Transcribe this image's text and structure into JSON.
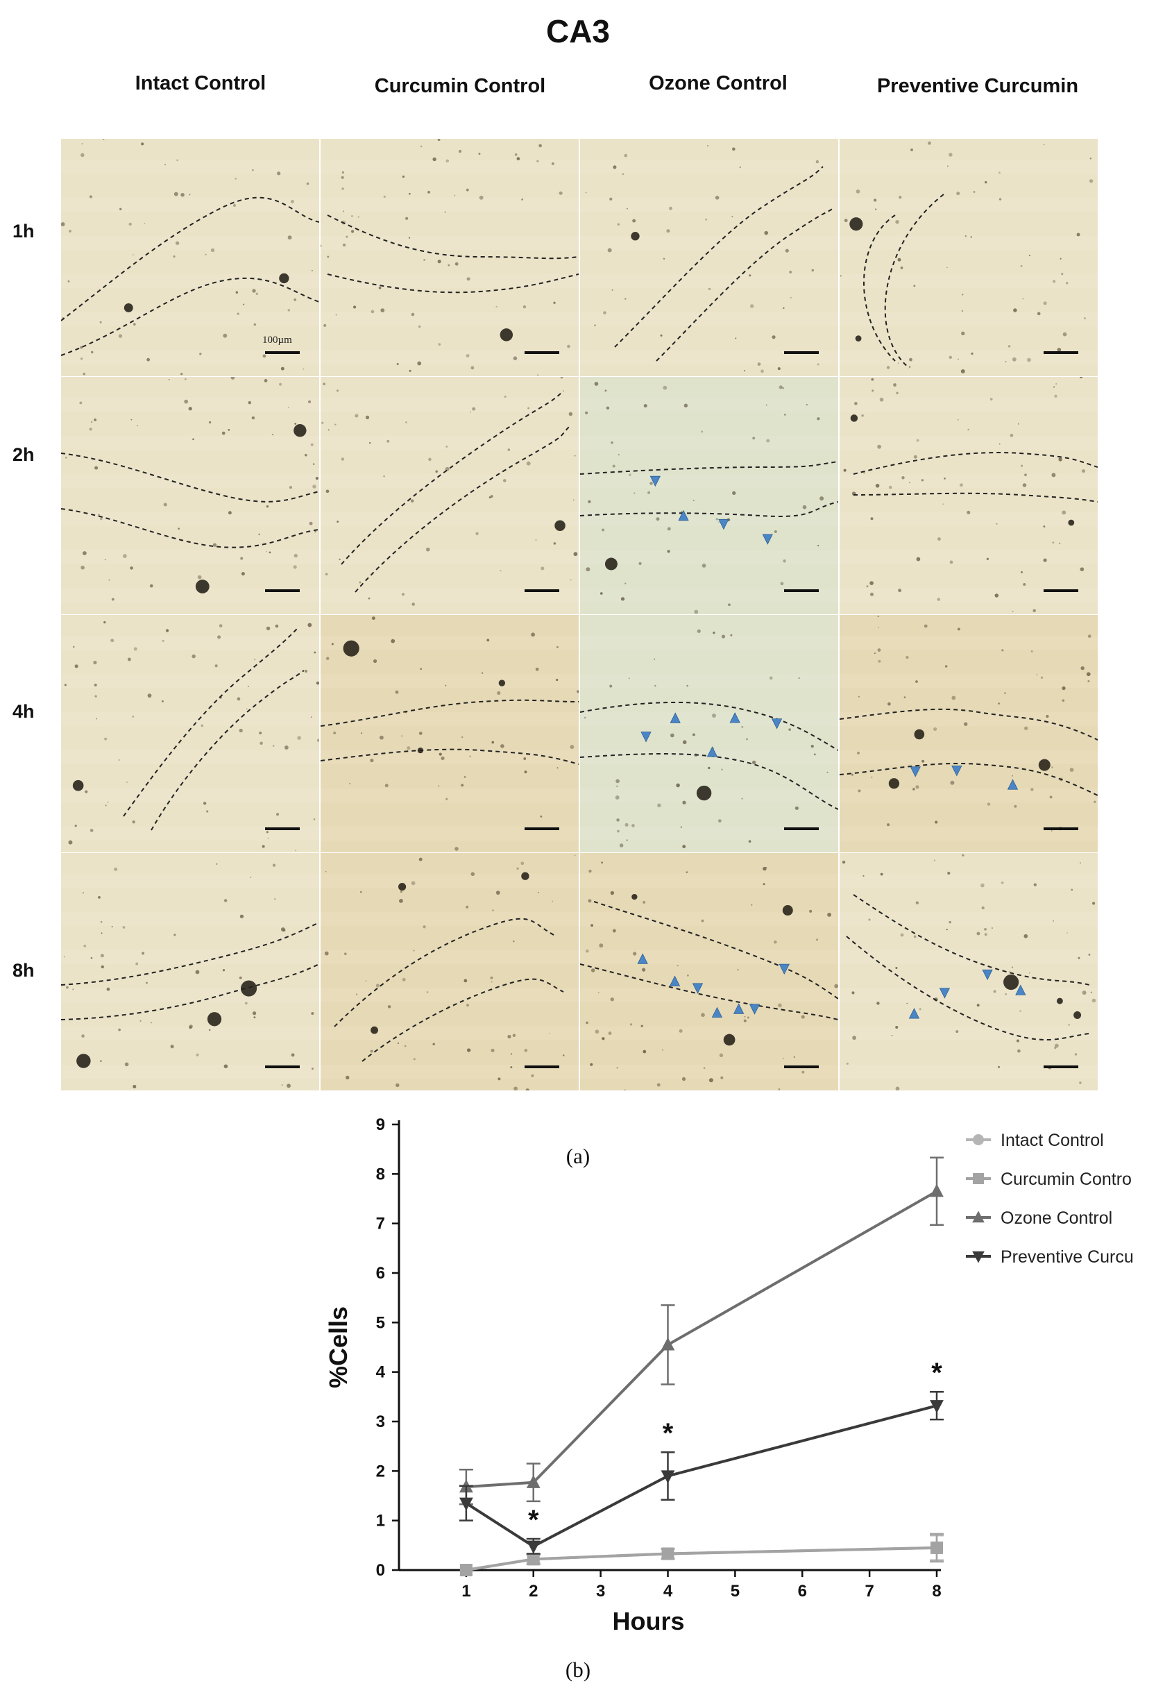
{
  "figure": {
    "title": "CA3",
    "columns": [
      "Intact Control",
      "Curcumin Control",
      "Ozone Control",
      "Preventive Curcumin"
    ],
    "rows": [
      "1h",
      "2h",
      "4h",
      "8h"
    ],
    "scale_bar_label": "100µm",
    "caption_a": "(a)",
    "caption_b": "(b)",
    "colors": {
      "tissue_light": "#ebe3c8",
      "tissue_green": "#dfe3cc",
      "tissue_brown": "#e6d9b6",
      "arrowhead": "#4a86c5",
      "boundary_line": "#222222"
    },
    "arrowhead_counts": [
      [
        0,
        0,
        0,
        0
      ],
      [
        0,
        0,
        4,
        0
      ],
      [
        0,
        0,
        5,
        3
      ],
      [
        0,
        0,
        7,
        4
      ]
    ]
  },
  "chart_data": {
    "type": "line",
    "x": [
      1,
      2,
      4,
      8
    ],
    "xlabel": "Hours",
    "ylabel": "%Cells",
    "x_ticks": [
      1,
      2,
      3,
      4,
      5,
      6,
      7,
      8
    ],
    "y_ticks": [
      0,
      1,
      2,
      3,
      4,
      5,
      6,
      7,
      8,
      9
    ],
    "xlim": [
      0,
      8
    ],
    "ylim": [
      0,
      9
    ],
    "grid": false,
    "legend_position": "top-right",
    "series": [
      {
        "name": "Intact Control",
        "marker": "circle",
        "color": "#b5b5b5",
        "values": [
          0,
          0.22,
          0.33,
          0.45
        ],
        "error": [
          0,
          0.08,
          0.1,
          0.25
        ]
      },
      {
        "name": "Curcumin Control",
        "marker": "square",
        "color": "#a3a3a3",
        "values": [
          0,
          0.22,
          0.33,
          0.45
        ],
        "error": [
          0,
          0.1,
          0.1,
          0.28
        ]
      },
      {
        "name": "Ozone Control",
        "marker": "triangle-up",
        "color": "#6e6e6e",
        "values": [
          1.68,
          1.77,
          4.55,
          7.65
        ],
        "error": [
          0.35,
          0.38,
          0.8,
          0.68
        ]
      },
      {
        "name": "Preventive Curcumin",
        "marker": "triangle-down",
        "color": "#3a3a3a",
        "values": [
          1.35,
          0.48,
          1.9,
          3.32
        ],
        "error": [
          0.35,
          0.15,
          0.48,
          0.28
        ]
      }
    ],
    "legend_labels_shown": [
      "Intact Control",
      "Curcumin Contro",
      "Ozone Control",
      "Preventive Curcu"
    ],
    "annotations": [
      {
        "x": 2,
        "text": "*"
      },
      {
        "x": 4,
        "text": "*"
      },
      {
        "x": 8,
        "text": "*"
      }
    ]
  }
}
